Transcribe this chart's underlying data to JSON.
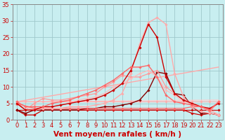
{
  "xlabel": "Vent moyen/en rafales ( km/h )",
  "bg_color": "#c8eef0",
  "grid_color": "#a0c8cc",
  "xlim": [
    -0.5,
    23.5
  ],
  "ylim": [
    0,
    35
  ],
  "yticks": [
    0,
    5,
    10,
    15,
    20,
    25,
    30,
    35
  ],
  "xticks": [
    0,
    1,
    2,
    3,
    4,
    5,
    6,
    7,
    8,
    9,
    10,
    11,
    12,
    13,
    14,
    15,
    16,
    17,
    18,
    19,
    20,
    21,
    22,
    23
  ],
  "series": [
    {
      "x": [
        0,
        1,
        2,
        3,
        4,
        5,
        6,
        7,
        8,
        9,
        10,
        11,
        12,
        13,
        14,
        15,
        16,
        17,
        18,
        19,
        20,
        21,
        22,
        23
      ],
      "y": [
        3,
        3,
        3,
        3,
        3,
        3,
        3,
        3,
        3,
        3,
        3,
        3,
        3,
        3,
        3,
        3,
        3,
        3,
        3,
        3,
        3,
        3,
        3,
        3
      ],
      "color": "#cc0000",
      "marker": "D",
      "markersize": 1.8,
      "linewidth": 0.8
    },
    {
      "x": [
        0,
        23
      ],
      "y": [
        5.5,
        16
      ],
      "color": "#ffaaaa",
      "marker": "none",
      "markersize": 0,
      "linewidth": 1.0
    },
    {
      "x": [
        0,
        23
      ],
      "y": [
        5.5,
        6.0
      ],
      "color": "#ffcccc",
      "marker": "none",
      "markersize": 0,
      "linewidth": 1.0
    },
    {
      "x": [
        0,
        1,
        2,
        3,
        4,
        5,
        6,
        7,
        8,
        9,
        10,
        11,
        12,
        13,
        14,
        15,
        16,
        17,
        18,
        19,
        20,
        21,
        22,
        23
      ],
      "y": [
        5.5,
        5.5,
        5.5,
        5.5,
        5.5,
        5.5,
        5.5,
        5.5,
        5.5,
        5.5,
        5.5,
        5.5,
        5.5,
        5.5,
        5.5,
        5.5,
        5.5,
        5.5,
        5.5,
        5.5,
        5.5,
        5.5,
        5.5,
        5.5
      ],
      "color": "#ffaaaa",
      "marker": "D",
      "markersize": 1.8,
      "linewidth": 0.8
    },
    {
      "x": [
        0,
        1,
        2,
        3,
        4,
        5,
        6,
        7,
        8,
        9,
        10,
        11,
        12,
        13,
        14,
        15,
        16,
        17,
        18,
        19,
        20,
        21,
        22,
        23
      ],
      "y": [
        3,
        1.5,
        1.5,
        3,
        3,
        3,
        3,
        3,
        3,
        3,
        3,
        3,
        3,
        3,
        3,
        3,
        3,
        3,
        3,
        3,
        2,
        1.5,
        2,
        1.5
      ],
      "color": "#cc0000",
      "marker": "D",
      "markersize": 1.8,
      "linewidth": 0.9
    },
    {
      "x": [
        0,
        1,
        2,
        3,
        4,
        5,
        6,
        7,
        8,
        9,
        10,
        11,
        12,
        13,
        14,
        15,
        16,
        17,
        18,
        19,
        20,
        21,
        22,
        23
      ],
      "y": [
        3,
        2,
        3,
        3,
        3,
        3,
        3,
        3,
        3.5,
        3.5,
        4,
        4,
        4.5,
        5,
        6,
        9,
        14.5,
        14,
        8,
        7.5,
        4,
        2,
        2,
        1.5
      ],
      "color": "#880000",
      "marker": "D",
      "markersize": 1.8,
      "linewidth": 1.0
    },
    {
      "x": [
        0,
        1,
        2,
        3,
        4,
        5,
        6,
        7,
        8,
        9,
        10,
        11,
        12,
        13,
        14,
        15,
        16,
        17,
        18,
        19,
        20,
        21,
        22,
        23
      ],
      "y": [
        5.5,
        3,
        5,
        6.5,
        6,
        6,
        6.5,
        7,
        7.5,
        8,
        10,
        11.5,
        13.5,
        13,
        13,
        14,
        15,
        10,
        8,
        6,
        5,
        4,
        2.5,
        5.5
      ],
      "color": "#ff9999",
      "marker": "D",
      "markersize": 1.8,
      "linewidth": 0.9
    },
    {
      "x": [
        0,
        2,
        3,
        4,
        5,
        6,
        7,
        8,
        9,
        10,
        11,
        12,
        13,
        14,
        15,
        16,
        17,
        18,
        19,
        20,
        21,
        22,
        23
      ],
      "y": [
        5,
        3.5,
        3.5,
        3.5,
        3.5,
        3.5,
        3.5,
        3.5,
        3.5,
        3.5,
        3.5,
        3.5,
        3.5,
        3.5,
        3.5,
        3.5,
        3.5,
        3.5,
        3.5,
        4,
        4,
        3,
        1.5
      ],
      "color": "#ff6666",
      "marker": "^",
      "markersize": 2.5,
      "linewidth": 0.9
    },
    {
      "x": [
        0,
        1,
        2,
        3,
        4,
        5,
        6,
        7,
        8,
        9,
        10,
        11,
        12,
        13,
        14,
        15,
        16,
        17,
        18,
        19,
        20,
        21,
        22,
        23
      ],
      "y": [
        5.5,
        4,
        3,
        3.5,
        4,
        4.5,
        5,
        6,
        6.5,
        7,
        8,
        10,
        11,
        12.5,
        14,
        15,
        13,
        9,
        7.5,
        5.5,
        5,
        4,
        3,
        1.5
      ],
      "color": "#ffbbbb",
      "marker": "D",
      "markersize": 1.8,
      "linewidth": 0.9
    },
    {
      "x": [
        0,
        1,
        2,
        3,
        4,
        5,
        6,
        7,
        8,
        9,
        10,
        11,
        12,
        13,
        14,
        15,
        16,
        17,
        18,
        19,
        20,
        21,
        22,
        23
      ],
      "y": [
        5,
        3,
        3,
        3.5,
        3.5,
        3.5,
        4,
        4,
        4,
        4.5,
        5,
        6,
        8,
        14,
        23,
        29.5,
        31,
        29,
        14,
        7,
        4,
        2.5,
        2,
        1.5
      ],
      "color": "#ffaaaa",
      "marker": "D",
      "markersize": 1.8,
      "linewidth": 1.0
    },
    {
      "x": [
        0,
        1,
        2,
        3,
        4,
        5,
        6,
        7,
        8,
        9,
        10,
        11,
        12,
        13,
        14,
        15,
        16,
        17,
        18,
        19,
        20,
        21,
        22,
        23
      ],
      "y": [
        5,
        3,
        3,
        4,
        4,
        4.5,
        5,
        5.5,
        6,
        6.5,
        7.5,
        9,
        11,
        15,
        22,
        29,
        25,
        13,
        8,
        6,
        5,
        4,
        3.5,
        5
      ],
      "color": "#cc0000",
      "marker": "D",
      "markersize": 1.8,
      "linewidth": 1.0
    },
    {
      "x": [
        0,
        1,
        2,
        3,
        4,
        5,
        6,
        7,
        8,
        9,
        10,
        11,
        12,
        13,
        14,
        15,
        16,
        17,
        18,
        19,
        20,
        21,
        22,
        23
      ],
      "y": [
        5.5,
        4,
        4,
        4,
        5,
        5.5,
        6,
        7,
        8,
        9,
        10.5,
        12,
        14,
        16,
        16,
        16.5,
        13,
        7.5,
        5.5,
        5,
        4.5,
        4,
        3,
        5.5
      ],
      "color": "#ff6666",
      "marker": "D",
      "markersize": 1.8,
      "linewidth": 1.0
    }
  ],
  "xlabel_color": "#cc0000",
  "xlabel_fontsize": 7.5,
  "tick_color": "#cc0000",
  "tick_fontsize": 6.0
}
